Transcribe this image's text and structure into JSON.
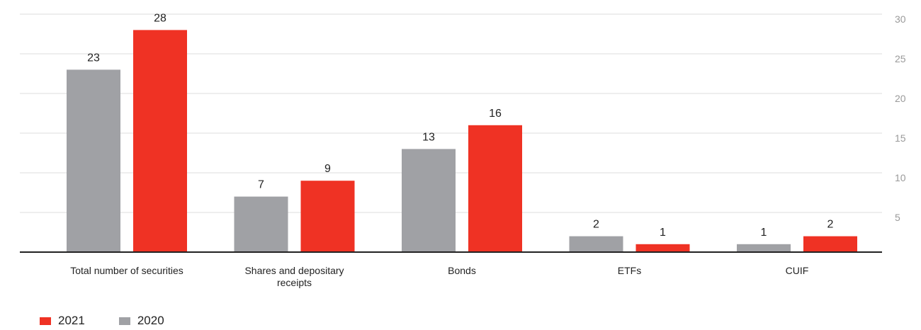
{
  "chart_data": {
    "type": "bar",
    "categories": [
      "Total number of securities",
      "Shares and depositary receipts",
      "Bonds",
      "ETFs",
      "CUIF"
    ],
    "category_lines": [
      [
        "Total number of securities"
      ],
      [
        "Shares and depositary",
        "receipts"
      ],
      [
        "Bonds"
      ],
      [
        "ETFs"
      ],
      [
        "CUIF"
      ]
    ],
    "series": [
      {
        "name": "2020",
        "values": [
          23,
          7,
          13,
          2,
          1
        ],
        "color": "#a0a1a5"
      },
      {
        "name": "2021",
        "values": [
          28,
          9,
          16,
          1,
          2
        ],
        "color": "#ef3224"
      }
    ],
    "ylim": [
      0,
      30
    ],
    "yticks": [
      5,
      10,
      15,
      20,
      25,
      30
    ],
    "y_axis_side": "right",
    "grid": true,
    "legend": {
      "placement": "bottom-left",
      "order": [
        "2021",
        "2020"
      ]
    }
  }
}
